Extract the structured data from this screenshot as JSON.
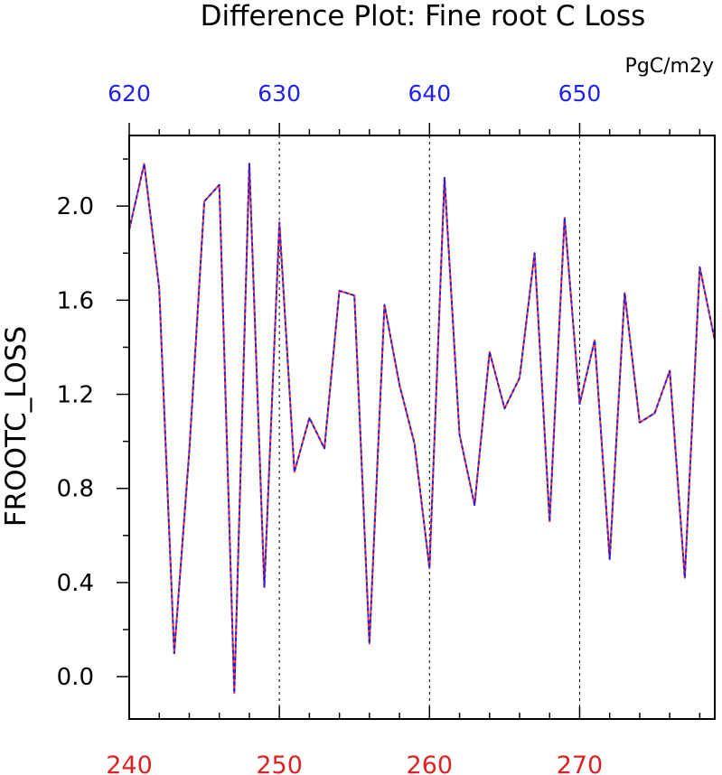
{
  "chart_data": {
    "type": "line",
    "title": "Difference Plot: Fine root C Loss",
    "units": "PgC/m2y",
    "ylabel": "FROOTC_LOSS",
    "colors": {
      "axis": "#000000",
      "bottom_ticks": "#dd2222",
      "top_ticks": "#2222ee",
      "series_a": "#ff3333",
      "series_b": "#2222dd",
      "grid": "#000000"
    },
    "xlim_bottom": [
      240,
      279
    ],
    "xlim_top": [
      620,
      659
    ],
    "ylim": [
      -0.18,
      2.3
    ],
    "bottom_ticks": [
      "240",
      "250",
      "260",
      "270"
    ],
    "top_ticks": [
      "620",
      "630",
      "640",
      "650"
    ],
    "y_ticks": [
      "0.0",
      "0.4",
      "0.8",
      "1.2",
      "1.6",
      "2.0"
    ],
    "grid_x": [
      250,
      260,
      270
    ],
    "series": [
      {
        "x": [
          240,
          241,
          242,
          243,
          244,
          245,
          246,
          247,
          248,
          249,
          250,
          251,
          252,
          253,
          254,
          255,
          256,
          257,
          258,
          259,
          260,
          261,
          262,
          263,
          264,
          265,
          266,
          267,
          268,
          269,
          270,
          271,
          272,
          273,
          274,
          275,
          276,
          277,
          278,
          279
        ],
        "values": [
          1.9,
          2.18,
          1.65,
          0.1,
          0.96,
          2.02,
          2.09,
          -0.07,
          2.18,
          0.38,
          1.93,
          0.87,
          1.1,
          0.97,
          1.64,
          1.62,
          0.14,
          1.58,
          1.24,
          0.99,
          0.46,
          2.12,
          1.03,
          0.73,
          1.38,
          1.14,
          1.27,
          1.8,
          0.66,
          1.95,
          1.16,
          1.43,
          0.5,
          1.63,
          1.08,
          1.12,
          1.3,
          0.42,
          1.74,
          1.43
        ]
      }
    ]
  }
}
